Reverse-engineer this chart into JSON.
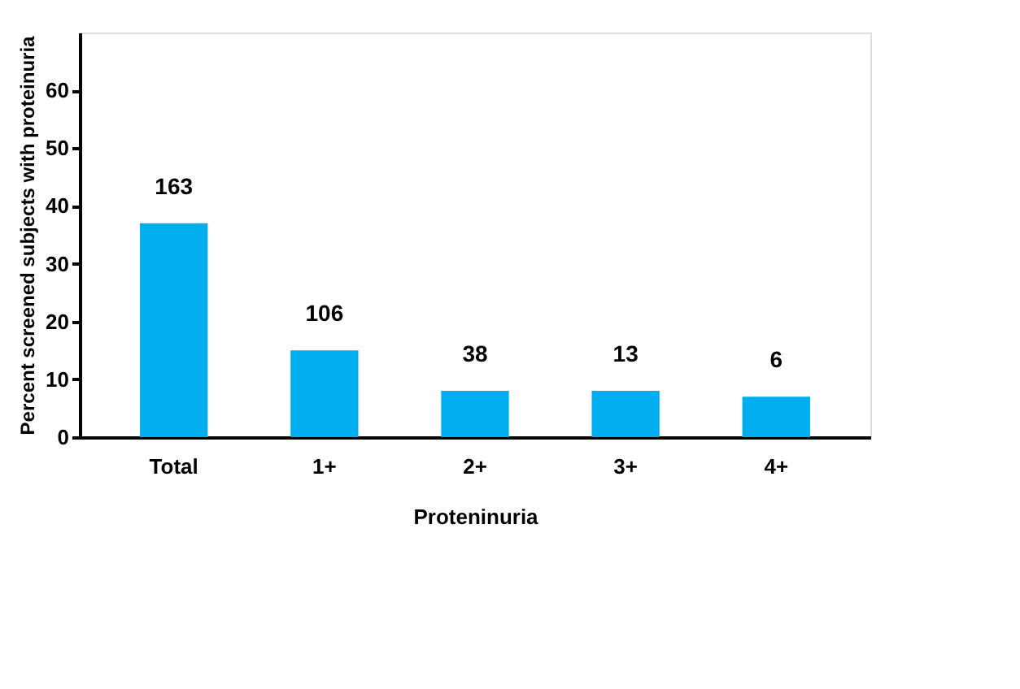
{
  "chart_data": {
    "type": "bar",
    "xlabel": "Proteninuria",
    "ylabel": "Percent screened subjects with proteinuria",
    "categories": [
      "Total",
      "1+",
      "2+",
      "3+",
      "4+"
    ],
    "values": [
      37,
      15,
      8,
      8,
      7
    ],
    "color": "#00aeef",
    "annotations": [
      {
        "text": "163",
        "x": "Total",
        "y": 37
      },
      {
        "text": "106",
        "x": "1+",
        "y": 15
      },
      {
        "text": "38",
        "x": "2+",
        "y": 8
      },
      {
        "text": "13",
        "x": "3+",
        "y": 8
      },
      {
        "text": "6",
        "x": "4+",
        "y": 7
      }
    ],
    "ylim": [
      0,
      70
    ],
    "yticks": [
      0,
      10,
      20,
      30,
      40,
      50,
      60
    ]
  }
}
